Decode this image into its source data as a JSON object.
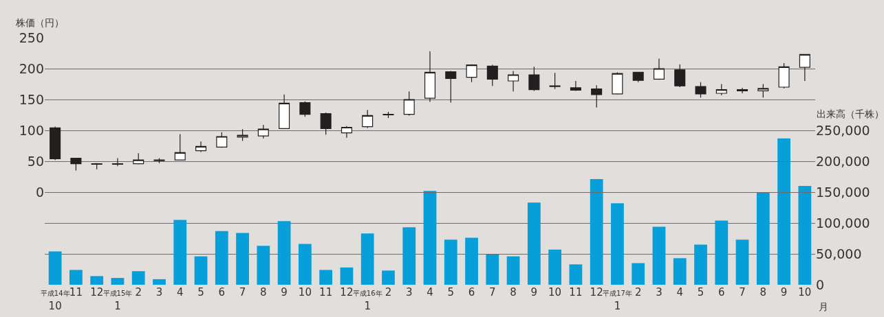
{
  "chart_data": {
    "type": "candlestick",
    "ylabel": "株価（円）",
    "y2label": "出来高（千株）",
    "xlabel": "月",
    "categories": [
      "平成14年\n10",
      "11",
      "12",
      "平成15年\n1",
      "2",
      "3",
      "4",
      "5",
      "6",
      "7",
      "8",
      "9",
      "10",
      "11",
      "12",
      "平成16年\n1",
      "2",
      "3",
      "4",
      "5",
      "6",
      "7",
      "8",
      "9",
      "10",
      "11",
      "12",
      "平成17年\n1",
      "2",
      "3",
      "4",
      "5",
      "6",
      "7",
      "8",
      "9",
      "10"
    ],
    "series": [
      {
        "type": "bar",
        "axis": "y2",
        "color": "#069fda",
        "values": [
          54000,
          24000,
          14000,
          11000,
          22000,
          9000,
          105000,
          46000,
          87000,
          84000,
          63000,
          103000,
          66000,
          24000,
          28000,
          83000,
          23000,
          93000,
          152000,
          73000,
          76000,
          49000,
          46000,
          133000,
          57000,
          33000,
          171000,
          132000,
          35000,
          94000,
          43000,
          65000,
          104000,
          73000,
          150000,
          237000,
          160000
        ]
      },
      {
        "color": "#231f20",
        "ohlc": [
          [
            104,
            106,
            52,
            54
          ],
          [
            55,
            55,
            35,
            46
          ],
          [
            46,
            47,
            37,
            45
          ],
          [
            46,
            55,
            42,
            45
          ],
          [
            46,
            63,
            45,
            52
          ],
          [
            52,
            55,
            47,
            51
          ],
          [
            52,
            94,
            52,
            64
          ],
          [
            67,
            82,
            65,
            74
          ],
          [
            73,
            97,
            72,
            90
          ],
          [
            89,
            102,
            83,
            92
          ],
          [
            91,
            109,
            87,
            102
          ],
          [
            103,
            158,
            103,
            144
          ],
          [
            145,
            147,
            122,
            126
          ],
          [
            127,
            129,
            93,
            103
          ],
          [
            96,
            107,
            88,
            105
          ],
          [
            106,
            133,
            104,
            124
          ],
          [
            126,
            130,
            120,
            125
          ],
          [
            126,
            163,
            124,
            150
          ],
          [
            152,
            228,
            146,
            194
          ],
          [
            195,
            196,
            145,
            184
          ],
          [
            186,
            207,
            178,
            206
          ],
          [
            204,
            206,
            172,
            183
          ],
          [
            180,
            196,
            163,
            190
          ],
          [
            190,
            203,
            164,
            166
          ],
          [
            172,
            193,
            167,
            171
          ],
          [
            169,
            180,
            164,
            165
          ],
          [
            167,
            173,
            137,
            158
          ],
          [
            159,
            194,
            158,
            192
          ],
          [
            194,
            194,
            178,
            181
          ],
          [
            183,
            216,
            182,
            200
          ],
          [
            198,
            207,
            170,
            172
          ],
          [
            171,
            178,
            153,
            159
          ],
          [
            160,
            175,
            157,
            166
          ],
          [
            164,
            169,
            160,
            166
          ],
          [
            164,
            175,
            153,
            168
          ],
          [
            170,
            209,
            168,
            203
          ],
          [
            202,
            223,
            180,
            223
          ]
        ]
      }
    ],
    "ylim": [
      -150,
      250
    ],
    "yticks": [
      0,
      50,
      100,
      150,
      200,
      250
    ],
    "y2lim": [
      0,
      250000
    ],
    "y2ticks": [
      0,
      {
        "value": 50000,
        "label": "50,000"
      },
      {
        "value": 100000,
        "label": "100,000"
      },
      {
        "value": 150000,
        "label": "150,000"
      },
      {
        "value": 200000,
        "label": "200,000"
      },
      {
        "value": 250000,
        "label": "250,000"
      }
    ],
    "grid": true
  }
}
